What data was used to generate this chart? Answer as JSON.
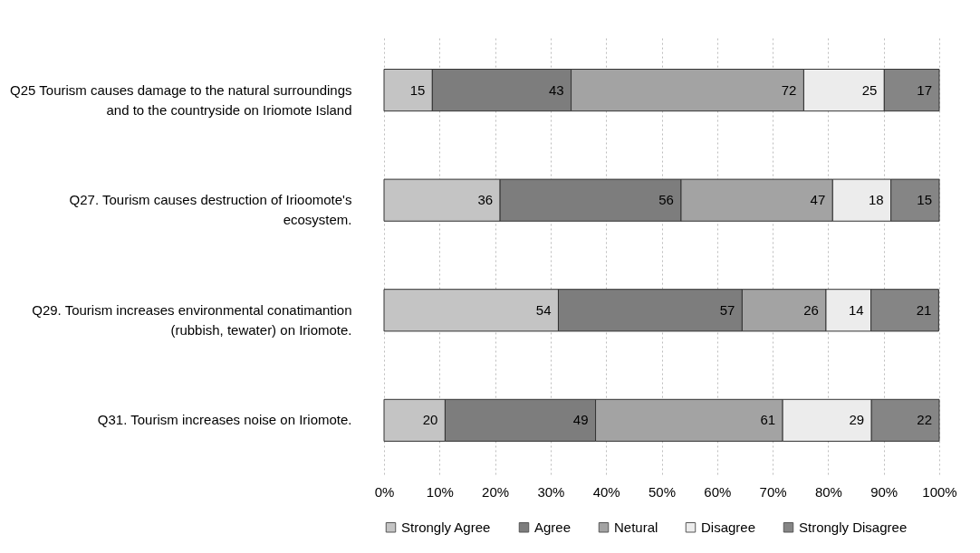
{
  "chart_data": {
    "type": "bar",
    "orientation": "horizontal",
    "stacked": true,
    "categories": [
      "Q25 Tourism causes damage to the natural surroundings\nand to the countryside on Iriomote Island",
      "Q27. Tourism causes destruction of Irioomote's\necosystem.",
      "Q29. Tourism increases environmental conatimantion\n(rubbish, tewater) on Iriomote.",
      "Q31. Tourism increases noise on Iriomote."
    ],
    "series": [
      {
        "name": "Strongly Agree",
        "color": "#c4c4c4",
        "values": [
          8.7,
          20.9,
          31.4,
          11.0
        ]
      },
      {
        "name": "Agree",
        "color": "#7d7d7d",
        "values": [
          25.0,
          32.6,
          33.1,
          27.1
        ]
      },
      {
        "name": "Netural",
        "color": "#a3a3a3",
        "values": [
          41.9,
          27.3,
          15.1,
          33.7
        ]
      },
      {
        "name": "Disagree",
        "color": "#ececec",
        "values": [
          14.5,
          10.5,
          8.1,
          16.0
        ]
      },
      {
        "name": "Strongly Disagree",
        "color": "#858585",
        "values": [
          9.9,
          8.7,
          12.2,
          12.2
        ]
      }
    ],
    "annotations": [
      {
        "text": "15",
        "x": 8.7,
        "y": "Q25 Tourism causes damage to the natural surroundings\nand to the countryside on Iriomote Island"
      },
      {
        "text": "43",
        "x": 33.7,
        "y": "Q25 Tourism causes damage to the natural surroundings\nand to the countryside on Iriomote Island"
      },
      {
        "text": "72",
        "x": 75.6,
        "y": "Q25 Tourism causes damage to the natural surroundings\nand to the countryside on Iriomote Island"
      },
      {
        "text": "25",
        "x": 90.1,
        "y": "Q25 Tourism causes damage to the natural surroundings\nand to the countryside on Iriomote Island"
      },
      {
        "text": "17",
        "x": 100.0,
        "y": "Q25 Tourism causes damage to the natural surroundings\nand to the countryside on Iriomote Island"
      },
      {
        "text": "36",
        "x": 20.9,
        "y": "Q27. Tourism causes destruction of Irioomote's\necosystem."
      },
      {
        "text": "56",
        "x": 53.5,
        "y": "Q27. Tourism causes destruction of Irioomote's\necosystem."
      },
      {
        "text": "47",
        "x": 80.8,
        "y": "Q27. Tourism causes destruction of Irioomote's\necosystem."
      },
      {
        "text": "18",
        "x": 91.3,
        "y": "Q27. Tourism causes destruction of Irioomote's\necosystem."
      },
      {
        "text": "15",
        "x": 100.0,
        "y": "Q27. Tourism causes destruction of Irioomote's\necosystem."
      },
      {
        "text": "54",
        "x": 31.4,
        "y": "Q29. Tourism increases environmental conatimantion\n(rubbish, tewater) on Iriomote."
      },
      {
        "text": "57",
        "x": 64.5,
        "y": "Q29. Tourism increases environmental conatimantion\n(rubbish, tewater) on Iriomote."
      },
      {
        "text": "26",
        "x": 79.6,
        "y": "Q29. Tourism increases environmental conatimantion\n(rubbish, tewater) on Iriomote."
      },
      {
        "text": "14",
        "x": 87.7,
        "y": "Q29. Tourism increases environmental conatimantion\n(rubbish, tewater) on Iriomote."
      },
      {
        "text": "21",
        "x": 99.9,
        "y": "Q29. Tourism increases environmental conatimantion\n(rubbish, tewater) on Iriomote."
      },
      {
        "text": "20",
        "x": 11.0,
        "y": "Q31. Tourism increases noise on Iriomote."
      },
      {
        "text": "49",
        "x": 38.1,
        "y": "Q31. Tourism increases noise on Iriomote."
      },
      {
        "text": "61",
        "x": 71.8,
        "y": "Q31. Tourism increases noise on Iriomote."
      },
      {
        "text": "29",
        "x": 87.8,
        "y": "Q31. Tourism increases noise on Iriomote."
      },
      {
        "text": "22",
        "x": 100.0,
        "y": "Q31. Tourism increases noise on Iriomote."
      }
    ],
    "xlim": [
      0,
      100
    ],
    "xticks": [
      {
        "value": 0,
        "label": "0%"
      },
      {
        "value": 10,
        "label": "10%"
      },
      {
        "value": 20,
        "label": "20%"
      },
      {
        "value": 30,
        "label": "30%"
      },
      {
        "value": 40,
        "label": "40%"
      },
      {
        "value": 50,
        "label": "50%"
      },
      {
        "value": 60,
        "label": "60%"
      },
      {
        "value": 70,
        "label": "70%"
      },
      {
        "value": 80,
        "label": "80%"
      },
      {
        "value": 90,
        "label": "90%"
      },
      {
        "value": 100,
        "label": "100%"
      }
    ],
    "grid": "x",
    "legend": "bottom"
  }
}
